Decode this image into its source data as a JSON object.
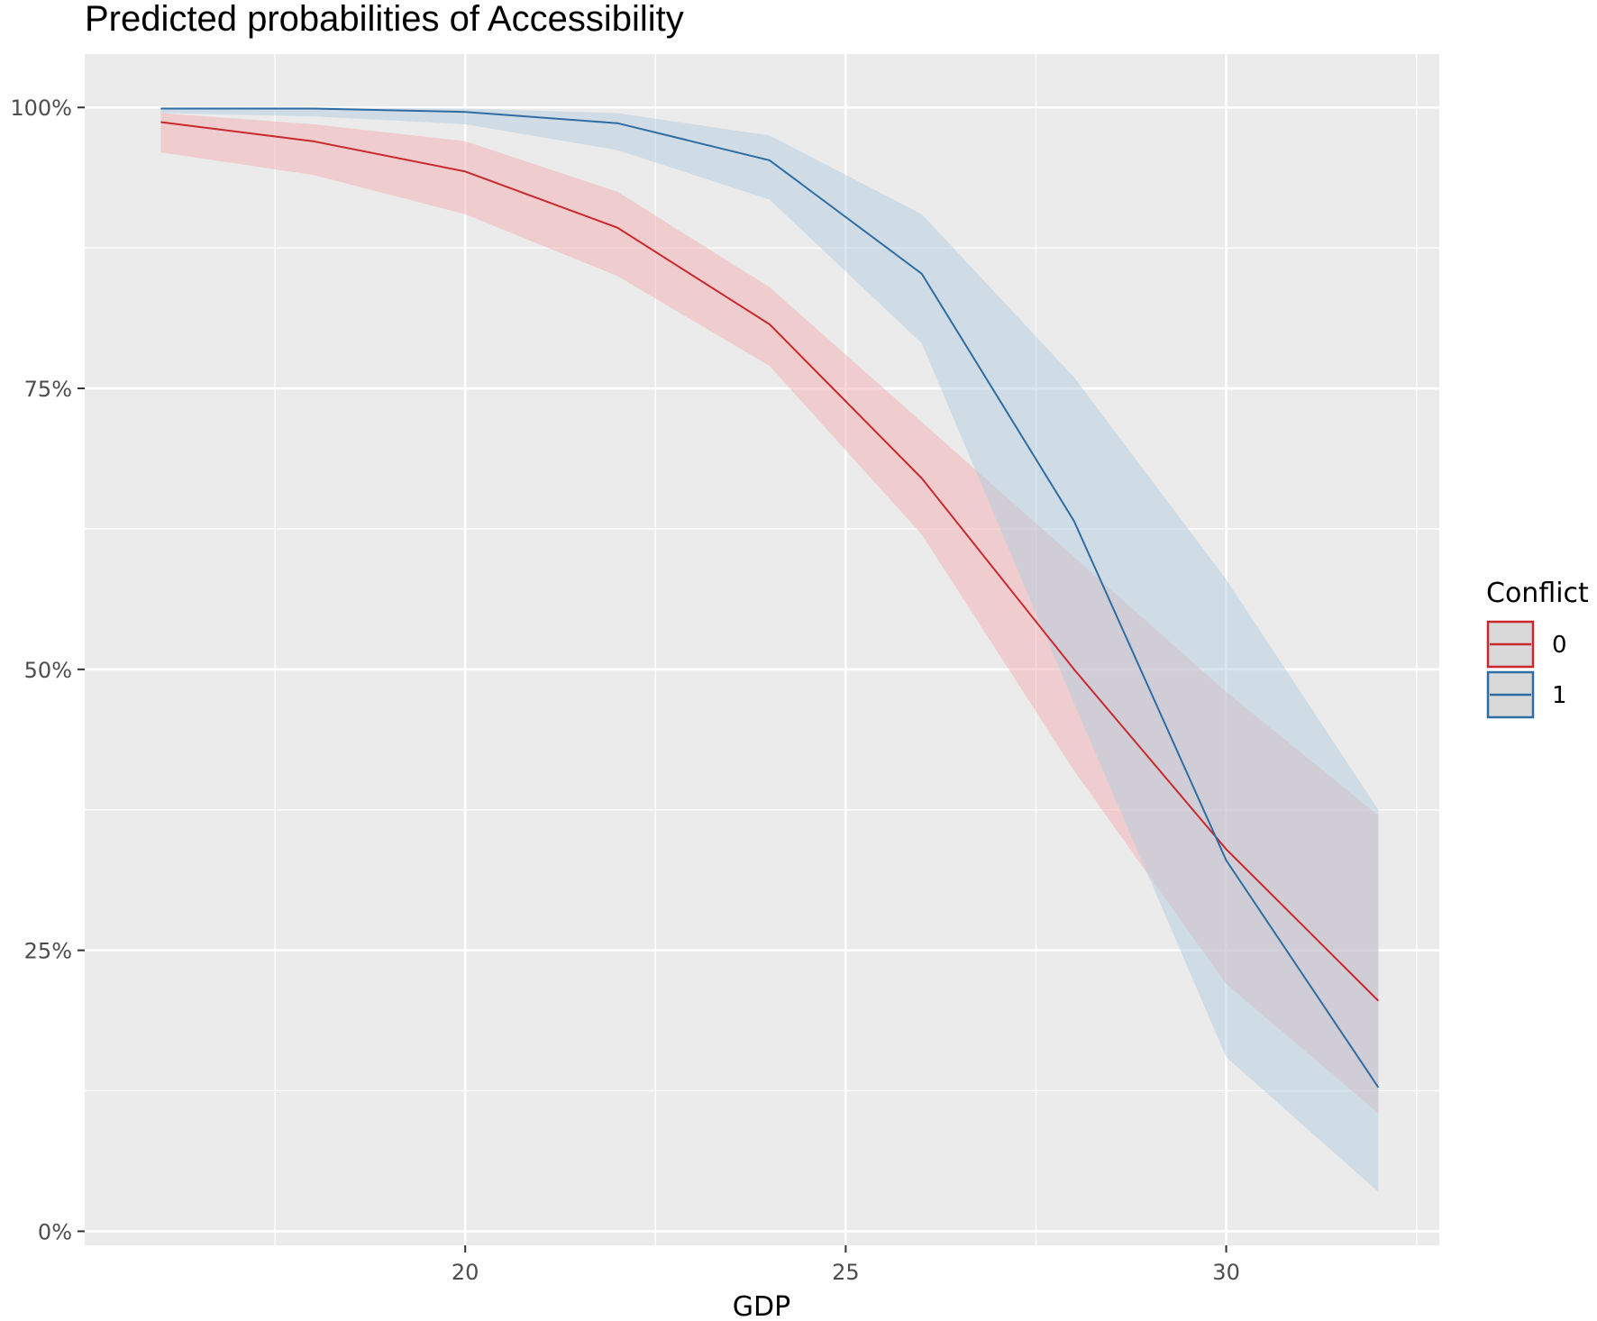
{
  "chart_data": {
    "type": "line",
    "title": "Predicted probabilities of Accessibility",
    "xlabel": "GDP",
    "ylabel": "",
    "xlim": [
      15.0,
      32.8
    ],
    "ylim": [
      -0.0125,
      1.0475
    ],
    "x_ticks": [
      20,
      25,
      30
    ],
    "x_tick_labels": [
      "20",
      "25",
      "30"
    ],
    "y_ticks": [
      0,
      0.25,
      0.5,
      0.75,
      1.0
    ],
    "y_tick_labels": [
      "0%",
      "25%",
      "50%",
      "75%",
      "100%"
    ],
    "grid": true,
    "legend": {
      "title": "Conflict",
      "position": "right",
      "entries": [
        "0",
        "1"
      ]
    },
    "series": [
      {
        "name": "0",
        "color": "#c9282d",
        "fill": "#f4aeb0",
        "x": [
          16,
          18,
          20,
          22,
          24,
          26,
          28,
          30,
          32
        ],
        "y": [
          0.987,
          0.97,
          0.943,
          0.893,
          0.807,
          0.67,
          0.5,
          0.34,
          0.205
        ],
        "lower": [
          0.96,
          0.94,
          0.905,
          0.85,
          0.77,
          0.62,
          0.41,
          0.22,
          0.105
        ],
        "upper": [
          0.995,
          0.985,
          0.97,
          0.925,
          0.84,
          0.72,
          0.6,
          0.48,
          0.37
        ]
      },
      {
        "name": "1",
        "color": "#2e6da4",
        "fill": "#b3cde0",
        "x": [
          16,
          18,
          20,
          22,
          24,
          26,
          28,
          30,
          32
        ],
        "y": [
          0.999,
          0.999,
          0.996,
          0.986,
          0.953,
          0.852,
          0.632,
          0.33,
          0.128
        ],
        "lower": [
          0.995,
          0.992,
          0.985,
          0.962,
          0.918,
          0.79,
          0.47,
          0.155,
          0.035
        ],
        "upper": [
          1.0,
          1.0,
          0.999,
          0.995,
          0.975,
          0.905,
          0.76,
          0.58,
          0.375
        ]
      }
    ]
  }
}
